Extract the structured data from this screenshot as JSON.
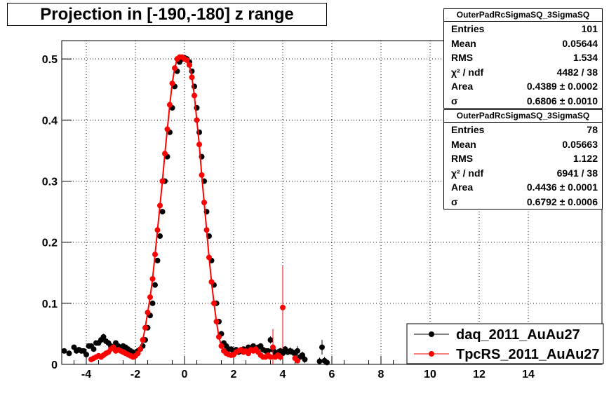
{
  "title": "Projection in [-190,-180] z range",
  "stats": [
    {
      "name": "OuterPadRcSigmaSQ_3SigmaSQ",
      "rows": [
        {
          "label": "Entries",
          "value": "101"
        },
        {
          "label": "Mean",
          "value": "0.05644"
        },
        {
          "label": "RMS",
          "value": "1.534"
        },
        {
          "label": "χ² / ndf",
          "value": "4482 / 38"
        },
        {
          "label": "Area",
          "value": "0.4389 ± 0.0002"
        },
        {
          "label": "σ",
          "value": "0.6806 ± 0.0010"
        }
      ]
    },
    {
      "name": "OuterPadRcSigmaSQ_3SigmaSQ",
      "rows": [
        {
          "label": "Entries",
          "value": "78"
        },
        {
          "label": "Mean",
          "value": "0.05663"
        },
        {
          "label": "RMS",
          "value": "1.122"
        },
        {
          "label": "χ² / ndf",
          "value": "6941 / 38"
        },
        {
          "label": "Area",
          "value": "0.4436 ± 0.0001"
        },
        {
          "label": "σ",
          "value": "0.6792 ± 0.0006"
        }
      ]
    }
  ],
  "chart_data": {
    "type": "scatter",
    "title": "Projection in [-190,-180] z range",
    "xlim": [
      -5,
      17
    ],
    "ylim": [
      0,
      0.53
    ],
    "grid": true,
    "x_ticks": [
      -4,
      -2,
      0,
      2,
      4,
      6,
      8,
      10,
      12,
      14
    ],
    "x_tick_labels": [
      "-4",
      "-2",
      "0",
      "2",
      "4",
      "6",
      "8",
      "10",
      "12",
      "14"
    ],
    "y_ticks": [
      0,
      0.1,
      0.2,
      0.3,
      0.4,
      0.5
    ],
    "y_tick_labels": [
      "0",
      "0.1",
      "0.2",
      "0.3",
      "0.4",
      "0.5"
    ],
    "legend_position": "bottom-right",
    "series": [
      {
        "name": "daq_2011_AuAu27",
        "color": "#000000",
        "x": [
          -4.9,
          -4.7,
          -4.5,
          -4.4,
          -4.3,
          -4.2,
          -4.1,
          -4.0,
          -3.9,
          -3.8,
          -3.7,
          -3.6,
          -3.5,
          -3.4,
          -3.3,
          -3.2,
          -3.1,
          -3.0,
          -2.9,
          -2.8,
          -2.7,
          -2.6,
          -2.5,
          -2.4,
          -2.3,
          -2.2,
          -2.1,
          -2.0,
          -1.9,
          -1.8,
          -1.7,
          -1.6,
          -1.5,
          -1.4,
          -1.3,
          -1.2,
          -1.1,
          -1.0,
          -0.9,
          -0.8,
          -0.7,
          -0.6,
          -0.5,
          -0.4,
          -0.3,
          -0.2,
          -0.1,
          0.0,
          0.1,
          0.2,
          0.3,
          0.4,
          0.5,
          0.6,
          0.7,
          0.8,
          0.9,
          1.0,
          1.1,
          1.2,
          1.3,
          1.4,
          1.5,
          1.6,
          1.7,
          1.8,
          1.9,
          2.0,
          2.1,
          2.2,
          2.3,
          2.4,
          2.5,
          2.6,
          2.7,
          2.8,
          2.9,
          3.0,
          3.1,
          3.2,
          3.3,
          3.4,
          3.5,
          3.6,
          3.7,
          3.8,
          3.9,
          4.0,
          4.1,
          4.2,
          4.3,
          4.4,
          4.5,
          4.6,
          4.7,
          4.8,
          4.9,
          5.5,
          5.6,
          5.7,
          5.8
        ],
        "y": [
          0.022,
          0.018,
          0.028,
          0.022,
          0.024,
          0.022,
          0.022,
          0.016,
          0.03,
          0.03,
          0.025,
          0.035,
          0.035,
          0.04,
          0.045,
          0.038,
          0.035,
          0.03,
          0.028,
          0.035,
          0.03,
          0.025,
          0.03,
          0.028,
          0.025,
          0.022,
          0.02,
          0.018,
          0.022,
          0.025,
          0.03,
          0.04,
          0.06,
          0.08,
          0.1,
          0.13,
          0.17,
          0.21,
          0.25,
          0.3,
          0.34,
          0.38,
          0.42,
          0.455,
          0.48,
          0.495,
          0.5,
          0.502,
          0.5,
          0.495,
          0.48,
          0.455,
          0.42,
          0.38,
          0.34,
          0.3,
          0.25,
          0.21,
          0.17,
          0.13,
          0.1,
          0.07,
          0.05,
          0.035,
          0.03,
          0.025,
          0.025,
          0.022,
          0.024,
          0.02,
          0.022,
          0.025,
          0.022,
          0.028,
          0.024,
          0.03,
          0.026,
          0.028,
          0.03,
          0.024,
          0.022,
          0.022,
          0.04,
          0.024,
          0.018,
          0.02,
          0.022,
          0.018,
          0.025,
          0.02,
          0.022,
          0.02,
          0.018,
          0.022,
          0.012,
          0.015,
          0.008,
          0.005,
          0.028,
          0.006,
          0.003
        ],
        "yerr": [
          0.003,
          0.003,
          0.004,
          0.003,
          0.003,
          0.003,
          0.003,
          0.003,
          0.004,
          0.004,
          0.003,
          0.004,
          0.004,
          0.005,
          0.005,
          0.004,
          0.004,
          0.004,
          0.003,
          0.004,
          0.003,
          0.003,
          0.003,
          0.003,
          0.003,
          0.003,
          0.003,
          0.003,
          0.003,
          0.003,
          0.003,
          0.003,
          0.003,
          0.003,
          0.003,
          0.003,
          0.003,
          0.003,
          0.003,
          0.003,
          0.003,
          0.003,
          0.003,
          0.003,
          0.003,
          0.003,
          0.003,
          0.003,
          0.003,
          0.003,
          0.003,
          0.003,
          0.003,
          0.003,
          0.003,
          0.003,
          0.003,
          0.003,
          0.003,
          0.003,
          0.003,
          0.003,
          0.003,
          0.003,
          0.003,
          0.003,
          0.003,
          0.003,
          0.003,
          0.003,
          0.003,
          0.003,
          0.004,
          0.004,
          0.004,
          0.004,
          0.004,
          0.004,
          0.004,
          0.004,
          0.004,
          0.004,
          0.006,
          0.005,
          0.005,
          0.005,
          0.005,
          0.005,
          0.005,
          0.005,
          0.006,
          0.006,
          0.006,
          0.008,
          0.006,
          0.006,
          0.006,
          0.006,
          0.012,
          0.006,
          0.005
        ]
      },
      {
        "name": "TpcRS_2011_AuAu27",
        "color": "#ff0000",
        "x": [
          -3.8,
          -3.7,
          -3.6,
          -3.5,
          -3.4,
          -3.3,
          -3.2,
          -3.1,
          -3.0,
          -2.9,
          -2.8,
          -2.7,
          -2.6,
          -2.5,
          -2.4,
          -2.3,
          -2.2,
          -2.1,
          -2.0,
          -1.9,
          -1.8,
          -1.7,
          -1.6,
          -1.5,
          -1.4,
          -1.3,
          -1.2,
          -1.1,
          -1.0,
          -0.9,
          -0.8,
          -0.7,
          -0.6,
          -0.5,
          -0.4,
          -0.3,
          -0.2,
          -0.1,
          0.0,
          0.1,
          0.2,
          0.3,
          0.4,
          0.5,
          0.6,
          0.7,
          0.8,
          0.9,
          1.0,
          1.1,
          1.2,
          1.3,
          1.4,
          1.5,
          1.6,
          1.7,
          1.8,
          1.9,
          2.0,
          2.1,
          2.2,
          2.3,
          2.4,
          2.5,
          2.6,
          2.7,
          2.8,
          2.9,
          3.0,
          3.1,
          3.2,
          3.3,
          3.4,
          3.5,
          3.6,
          3.7,
          3.8,
          3.9,
          4.0,
          4.5,
          4.6
        ],
        "y": [
          0.008,
          0.01,
          0.012,
          0.014,
          0.012,
          0.015,
          0.018,
          0.02,
          0.025,
          0.028,
          0.022,
          0.024,
          0.022,
          0.02,
          0.018,
          0.016,
          0.014,
          0.012,
          0.014,
          0.018,
          0.025,
          0.04,
          0.06,
          0.085,
          0.11,
          0.14,
          0.18,
          0.22,
          0.26,
          0.3,
          0.345,
          0.385,
          0.425,
          0.46,
          0.485,
          0.5,
          0.503,
          0.503,
          0.5,
          0.498,
          0.49,
          0.47,
          0.44,
          0.4,
          0.36,
          0.31,
          0.265,
          0.22,
          0.175,
          0.135,
          0.1,
          0.07,
          0.045,
          0.03,
          0.022,
          0.018,
          0.016,
          0.015,
          0.016,
          0.02,
          0.022,
          0.024,
          0.02,
          0.022,
          0.018,
          0.024,
          0.022,
          0.025,
          0.02,
          0.015,
          0.012,
          0.012,
          0.015,
          0.012,
          0.028,
          0.012,
          0.015,
          0.012,
          0.093,
          0.01,
          0.006
        ],
        "yerr": [
          0.002,
          0.002,
          0.002,
          0.002,
          0.002,
          0.002,
          0.002,
          0.002,
          0.002,
          0.002,
          0.002,
          0.002,
          0.002,
          0.002,
          0.002,
          0.002,
          0.002,
          0.002,
          0.002,
          0.002,
          0.002,
          0.002,
          0.002,
          0.002,
          0.002,
          0.002,
          0.002,
          0.002,
          0.002,
          0.002,
          0.002,
          0.002,
          0.002,
          0.002,
          0.002,
          0.002,
          0.002,
          0.002,
          0.002,
          0.002,
          0.002,
          0.002,
          0.002,
          0.002,
          0.002,
          0.002,
          0.002,
          0.002,
          0.002,
          0.002,
          0.002,
          0.002,
          0.002,
          0.002,
          0.002,
          0.002,
          0.002,
          0.002,
          0.002,
          0.002,
          0.002,
          0.002,
          0.002,
          0.002,
          0.002,
          0.002,
          0.002,
          0.002,
          0.003,
          0.003,
          0.003,
          0.003,
          0.003,
          0.003,
          0.03,
          0.004,
          0.005,
          0.006,
          0.068,
          0.005,
          0.004
        ]
      }
    ]
  }
}
